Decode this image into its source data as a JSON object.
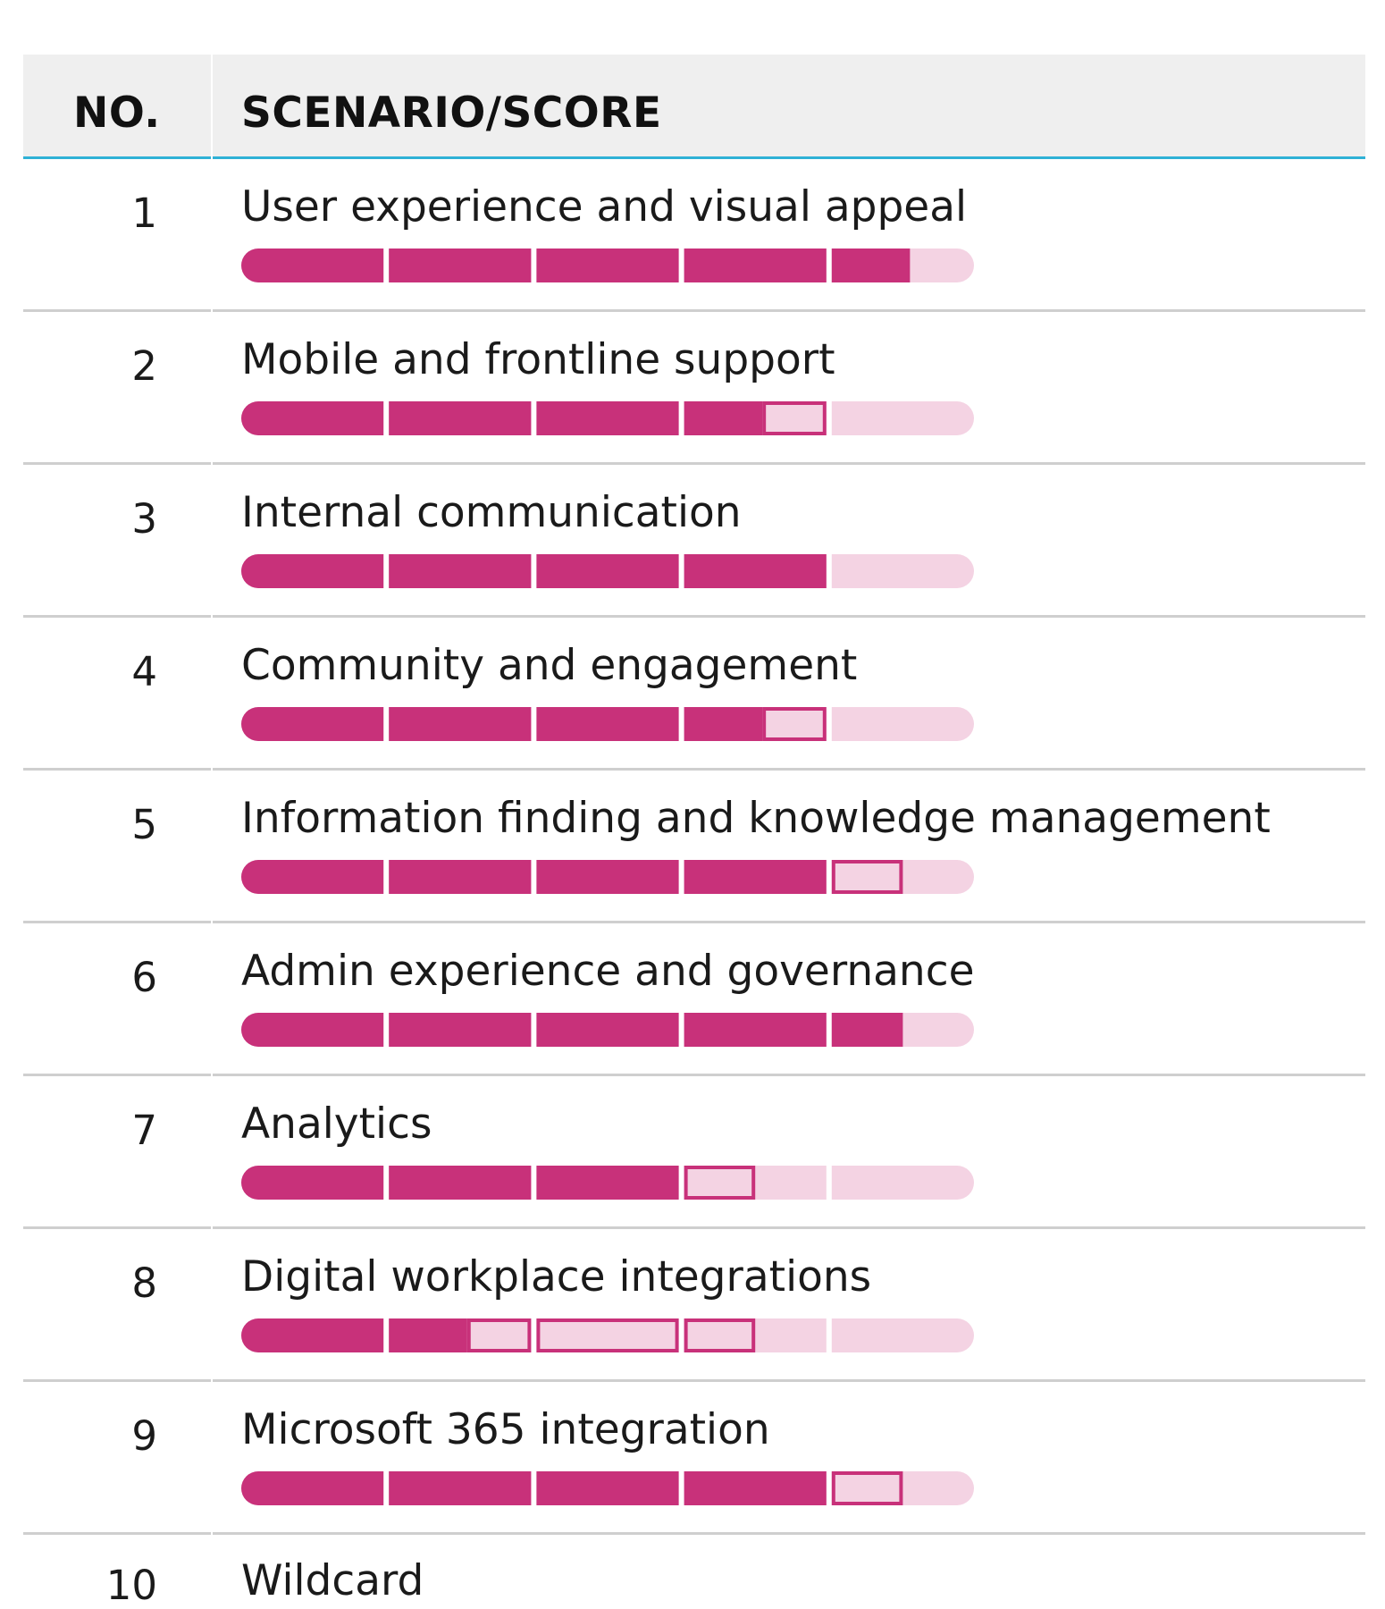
{
  "header": {
    "no_label": "NO.",
    "scenario_label": "SCENARIO/SCORE"
  },
  "colors": {
    "header_bg": "#efefef",
    "header_rule": "#2fb1d6",
    "score_fill": "#c8317a",
    "score_empty": "#f4d3e3",
    "score_partial": "#f4d3e3",
    "row_rule": "#cfcfcf"
  },
  "chart_data": {
    "type": "bar",
    "scale_max": 5,
    "segments": 5,
    "rows": [
      {
        "no": "1",
        "scenario": "User experience and visual appeal",
        "score": 4.55,
        "uncertainty_from": null,
        "uncertainty_to": null
      },
      {
        "no": "2",
        "scenario": "Mobile and frontline support",
        "score": 3.55,
        "uncertainty_from": 3.55,
        "uncertainty_to": 4.0
      },
      {
        "no": "3",
        "scenario": "Internal communication",
        "score": 4.0,
        "uncertainty_from": null,
        "uncertainty_to": null
      },
      {
        "no": "4",
        "scenario": "Community and engagement",
        "score": 3.55,
        "uncertainty_from": 3.55,
        "uncertainty_to": 4.0
      },
      {
        "no": "5",
        "scenario": "Information finding and knowledge management",
        "score": 4.0,
        "uncertainty_from": 4.0,
        "uncertainty_to": 4.5
      },
      {
        "no": "6",
        "scenario": "Admin experience and governance",
        "score": 4.5,
        "uncertainty_from": null,
        "uncertainty_to": null
      },
      {
        "no": "7",
        "scenario": "Analytics",
        "score": 3.0,
        "uncertainty_from": 3.0,
        "uncertainty_to": 3.5
      },
      {
        "no": "8",
        "scenario": "Digital workplace integrations",
        "score": 1.55,
        "uncertainty_from": 1.55,
        "uncertainty_to": 3.5
      },
      {
        "no": "9",
        "scenario": "Microsoft 365 integration",
        "score": 4.0,
        "uncertainty_from": 4.0,
        "uncertainty_to": 4.5
      },
      {
        "no": "10",
        "scenario": "Wildcard",
        "score": null,
        "uncertainty_from": null,
        "uncertainty_to": null
      }
    ]
  }
}
